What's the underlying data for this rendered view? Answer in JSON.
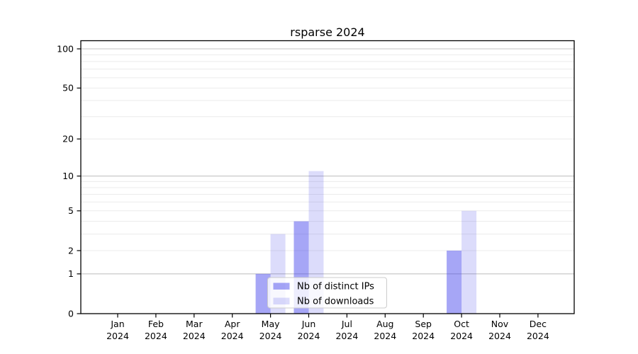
{
  "chart_data": {
    "type": "bar",
    "title": "rsparse 2024",
    "categories": [
      "Jan",
      "Feb",
      "Mar",
      "Apr",
      "May",
      "Jun",
      "Jul",
      "Aug",
      "Sep",
      "Oct",
      "Nov",
      "Dec"
    ],
    "xtick_year": "2024",
    "series": [
      {
        "name": "Nb of distinct IPs",
        "values": [
          0,
          0,
          0,
          0,
          1,
          4,
          0,
          0,
          0,
          2,
          0,
          0
        ],
        "color": "rgba(60,60,235,0.46)"
      },
      {
        "name": "Nb of downloads",
        "values": [
          0,
          0,
          0,
          0,
          3,
          11,
          0,
          0,
          0,
          5,
          0,
          0
        ],
        "color": "rgba(60,60,235,0.18)"
      }
    ],
    "yticks": [
      0,
      1,
      2,
      5,
      10,
      20,
      50,
      100
    ],
    "yscale": "log1p",
    "ylim": [
      0,
      110
    ],
    "grid": true,
    "legend_position": "lower center",
    "colors": {
      "grid_major": "#c3c3c3",
      "grid_minor": "#ebebeb",
      "axis": "#000000",
      "legend_bg": "rgba(255,255,255,0.8)",
      "legend_border": "#cccccc"
    }
  }
}
